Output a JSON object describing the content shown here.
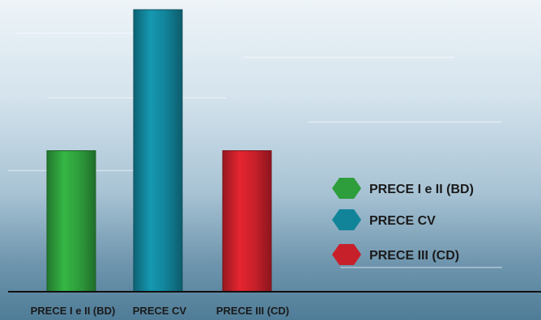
{
  "chart_data": {
    "type": "bar",
    "title": "",
    "xlabel": "",
    "ylabel": "",
    "categories": [
      "PRECE I e II (BD)",
      "PRECE CV",
      "PRECE III (CD)"
    ],
    "values": [
      1,
      2,
      1
    ],
    "ylim": [
      0,
      2
    ],
    "grid": false,
    "legend": {
      "placement": "right",
      "entries": [
        "PRECE I e II (BD)",
        "PRECE CV",
        "PRECE III (CD)"
      ]
    },
    "colors": [
      "#2e9e3c",
      "#12849a",
      "#c8202a"
    ],
    "legend_marker": "hexagon"
  }
}
